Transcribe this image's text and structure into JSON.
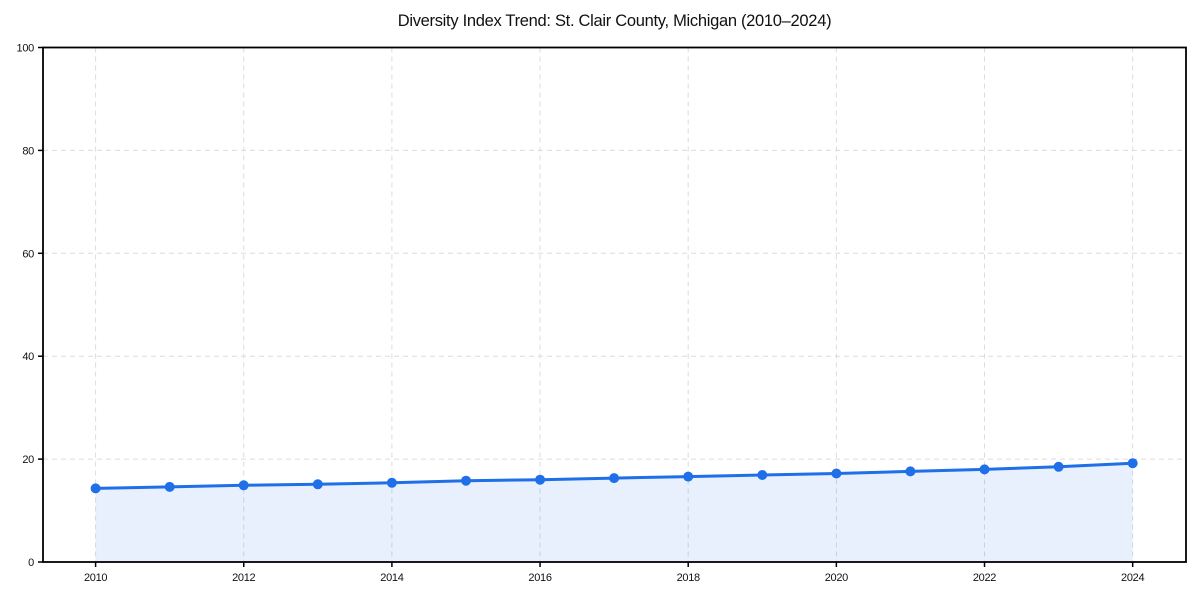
{
  "chart_data": {
    "type": "line",
    "title": "Diversity Index Trend: St. Clair County, Michigan (2010–2024)",
    "xlabel": "",
    "ylabel": "",
    "x": [
      2010,
      2011,
      2012,
      2013,
      2014,
      2015,
      2016,
      2017,
      2018,
      2019,
      2020,
      2021,
      2022,
      2023,
      2024
    ],
    "values": [
      14.3,
      14.6,
      14.9,
      15.1,
      15.4,
      15.8,
      16.0,
      16.3,
      16.6,
      16.9,
      17.2,
      17.6,
      18.0,
      18.5,
      19.2
    ],
    "xlim": [
      2009.29,
      2024.72
    ],
    "ylim": [
      0,
      100
    ],
    "xticks": [
      "2010",
      "2012",
      "2014",
      "2016",
      "2018",
      "2020",
      "2022",
      "2024"
    ],
    "xtick_values": [
      2010,
      2012,
      2014,
      2016,
      2018,
      2020,
      2022,
      2024
    ],
    "yticks": [
      "0",
      "20",
      "40",
      "60",
      "80",
      "100"
    ],
    "ytick_values": [
      0,
      20,
      40,
      60,
      80,
      100
    ],
    "grid": true,
    "grid_style": "dashed",
    "legend": null,
    "area_fill": true,
    "area_baseline": 0,
    "colors": {
      "line": "#1f6fe8",
      "marker": "#1f6fe8",
      "fill": "#1f6fe8",
      "fill_opacity": 0.1,
      "grid": "#dcdcdc",
      "axis": "#000000",
      "text": "#111111",
      "background": "#ffffff"
    }
  }
}
